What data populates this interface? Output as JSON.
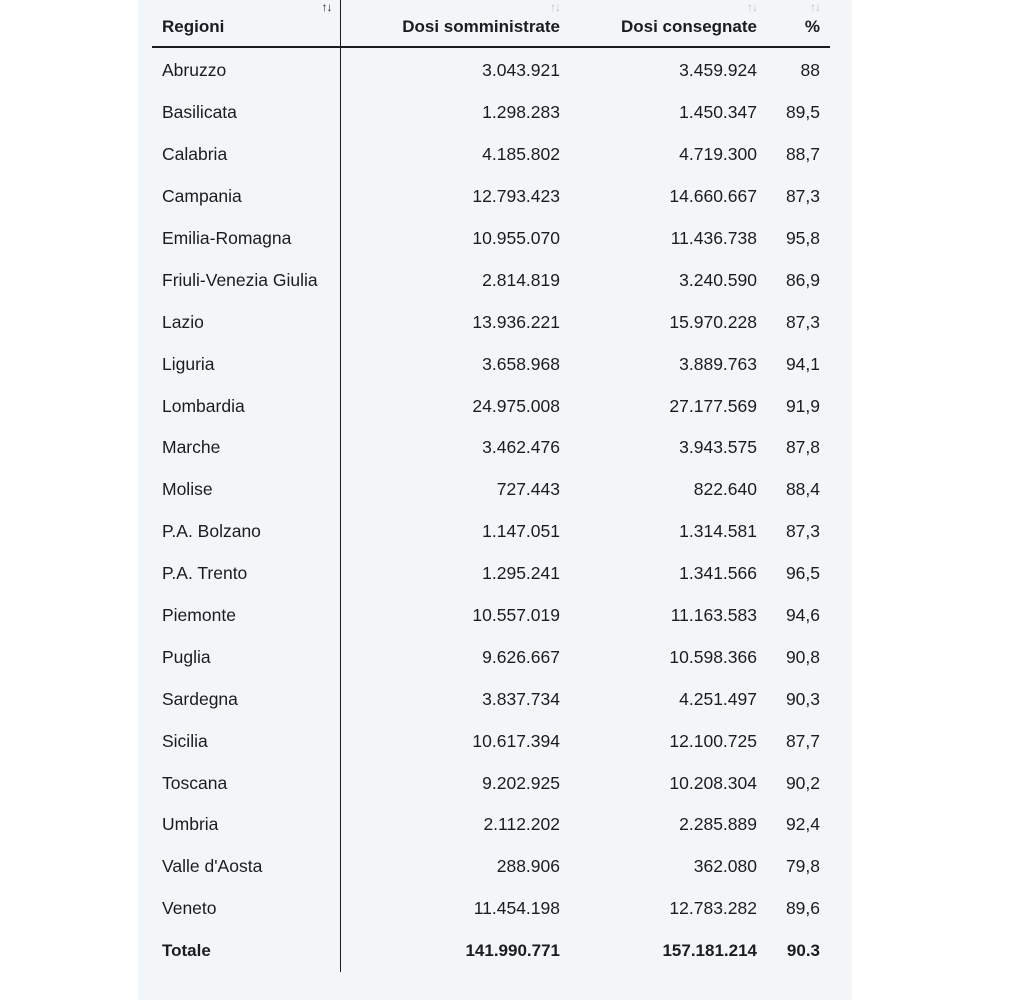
{
  "table": {
    "headers": {
      "region": "Regioni",
      "administered": "Dosi somministrate",
      "delivered": "Dosi consegnate",
      "percent": "%"
    },
    "sort_icon": "↑↓",
    "rows": [
      {
        "region": "Abruzzo",
        "administered": "3.043.921",
        "delivered": "3.459.924",
        "percent": "88"
      },
      {
        "region": "Basilicata",
        "administered": "1.298.283",
        "delivered": "1.450.347",
        "percent": "89,5"
      },
      {
        "region": "Calabria",
        "administered": "4.185.802",
        "delivered": "4.719.300",
        "percent": "88,7"
      },
      {
        "region": "Campania",
        "administered": "12.793.423",
        "delivered": "14.660.667",
        "percent": "87,3"
      },
      {
        "region": "Emilia-Romagna",
        "administered": "10.955.070",
        "delivered": "11.436.738",
        "percent": "95,8"
      },
      {
        "region": "Friuli-Venezia Giulia",
        "administered": "2.814.819",
        "delivered": "3.240.590",
        "percent": "86,9"
      },
      {
        "region": "Lazio",
        "administered": "13.936.221",
        "delivered": "15.970.228",
        "percent": "87,3"
      },
      {
        "region": "Liguria",
        "administered": "3.658.968",
        "delivered": "3.889.763",
        "percent": "94,1"
      },
      {
        "region": "Lombardia",
        "administered": "24.975.008",
        "delivered": "27.177.569",
        "percent": "91,9"
      },
      {
        "region": "Marche",
        "administered": "3.462.476",
        "delivered": "3.943.575",
        "percent": "87,8"
      },
      {
        "region": "Molise",
        "administered": "727.443",
        "delivered": "822.640",
        "percent": "88,4"
      },
      {
        "region": "P.A. Bolzano",
        "administered": "1.147.051",
        "delivered": "1.314.581",
        "percent": "87,3"
      },
      {
        "region": "P.A. Trento",
        "administered": "1.295.241",
        "delivered": "1.341.566",
        "percent": "96,5"
      },
      {
        "region": "Piemonte",
        "administered": "10.557.019",
        "delivered": "11.163.583",
        "percent": "94,6"
      },
      {
        "region": "Puglia",
        "administered": "9.626.667",
        "delivered": "10.598.366",
        "percent": "90,8"
      },
      {
        "region": "Sardegna",
        "administered": "3.837.734",
        "delivered": "4.251.497",
        "percent": "90,3"
      },
      {
        "region": "Sicilia",
        "administered": "10.617.394",
        "delivered": "12.100.725",
        "percent": "87,7"
      },
      {
        "region": "Toscana",
        "administered": "9.202.925",
        "delivered": "10.208.304",
        "percent": "90,2"
      },
      {
        "region": "Umbria",
        "administered": "2.112.202",
        "delivered": "2.285.889",
        "percent": "92,4"
      },
      {
        "region": "Valle d'Aosta",
        "administered": "288.906",
        "delivered": "362.080",
        "percent": "79,8"
      },
      {
        "region": "Veneto",
        "administered": "11.454.198",
        "delivered": "12.783.282",
        "percent": "89,6"
      }
    ],
    "total": {
      "region": "Totale",
      "administered": "141.990.771",
      "delivered": "157.181.214",
      "percent": "90.3"
    }
  }
}
